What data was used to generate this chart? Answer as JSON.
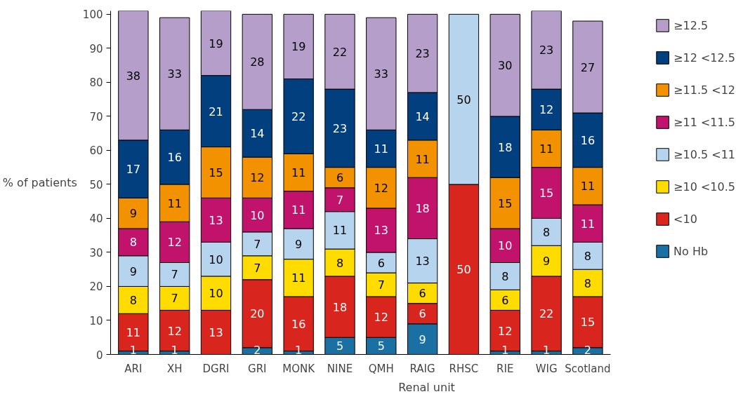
{
  "chart_data": {
    "type": "bar",
    "stacked": true,
    "xlabel": "Renal unit",
    "ylabel": "% of patients",
    "categories": [
      "ARI",
      "XH",
      "DGRI",
      "GRI",
      "MONK",
      "NINE",
      "QMH",
      "RAIG",
      "RHSC",
      "RIE",
      "WIG",
      "Scotland"
    ],
    "series": [
      {
        "name": "No Hb",
        "color": "#1a70a3",
        "values": [
          1,
          1,
          null,
          2,
          1,
          5,
          5,
          9,
          null,
          1,
          1,
          2
        ]
      },
      {
        "name": "<10",
        "color": "#d8261f",
        "values": [
          11,
          12,
          13,
          20,
          16,
          18,
          12,
          6,
          50,
          12,
          22,
          15
        ]
      },
      {
        "name": "≥10 <10.5",
        "color": "#ffdc00",
        "values": [
          8,
          7,
          10,
          7,
          11,
          8,
          7,
          6,
          null,
          6,
          9,
          8
        ]
      },
      {
        "name": "≥10.5 <11",
        "color": "#b7d4ee",
        "values": [
          9,
          7,
          10,
          7,
          9,
          11,
          6,
          13,
          50,
          8,
          8,
          8
        ]
      },
      {
        "name": "≥11 <11.5",
        "color": "#c2136c",
        "values": [
          8,
          12,
          13,
          10,
          11,
          7,
          13,
          18,
          null,
          10,
          15,
          11
        ]
      },
      {
        "name": "≥11.5 <12",
        "color": "#f39200",
        "values": [
          9,
          11,
          15,
          12,
          11,
          6,
          12,
          11,
          null,
          15,
          11,
          11
        ]
      },
      {
        "name": "≥12 <12.5",
        "color": "#013f7f",
        "values": [
          17,
          16,
          21,
          14,
          22,
          23,
          11,
          14,
          null,
          18,
          12,
          16
        ]
      },
      {
        "name": "≥12.5",
        "color": "#b59ec9",
        "values": [
          38,
          33,
          19,
          28,
          19,
          22,
          33,
          23,
          null,
          30,
          23,
          27
        ]
      }
    ],
    "ylim": [
      0,
      101
    ],
    "yticks": [
      0,
      10,
      20,
      30,
      40,
      50,
      60,
      70,
      80,
      90,
      100
    ],
    "data_labels": true,
    "legend": "right",
    "grid": false
  }
}
